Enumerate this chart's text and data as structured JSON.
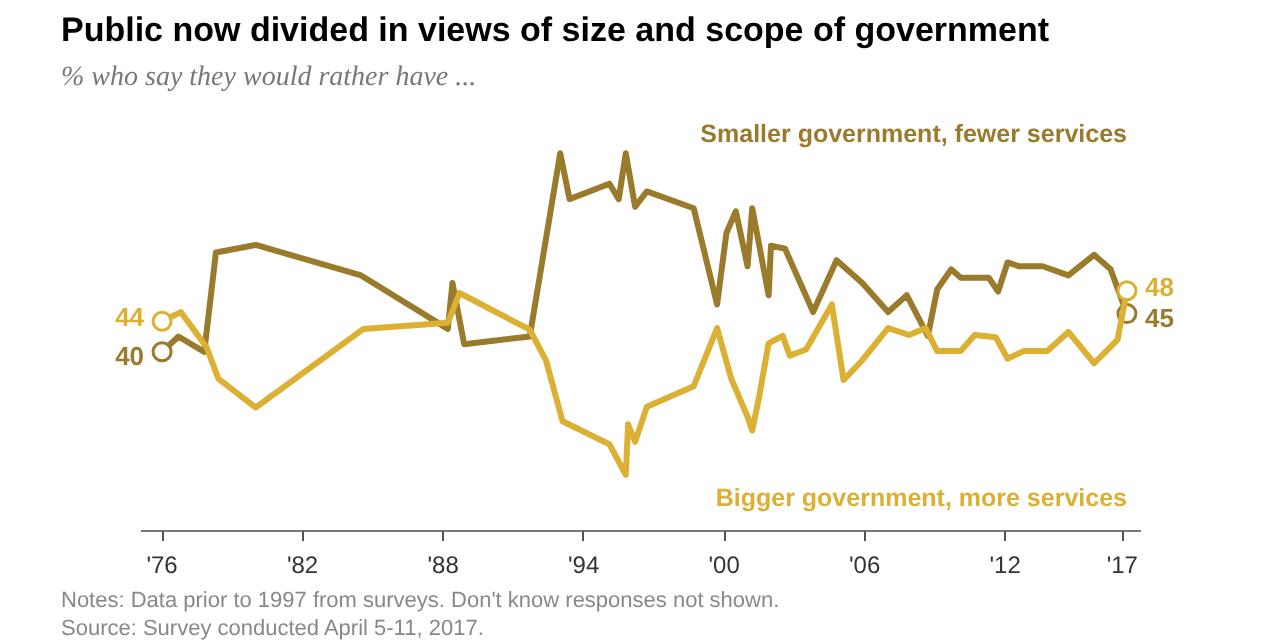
{
  "chart_data": {
    "type": "line",
    "title": "Public now divided in views of size and scope of government",
    "subtitle": "% who say they would rather have ...",
    "xlim": [
      1975.1,
      2017.8
    ],
    "xticks": [
      {
        "value": 1976,
        "label": "'76"
      },
      {
        "value": 1982,
        "label": "'82"
      },
      {
        "value": 1988,
        "label": "'88"
      },
      {
        "value": 1994,
        "label": "'94"
      },
      {
        "value": 2000,
        "label": "'00"
      },
      {
        "value": 2006,
        "label": "'06"
      },
      {
        "value": 2012,
        "label": "'12"
      },
      {
        "value": 2017,
        "label": "'17"
      }
    ],
    "tick_labels": "x",
    "grid": false,
    "legend": false,
    "series": [
      {
        "name": "Smaller government, fewer services",
        "color": "#9a7b2c",
        "x": [
          1976.0,
          1976.7,
          1977.8,
          1978.3,
          1980.0,
          1984.5,
          1988.2,
          1988.4,
          1988.9,
          1991.7,
          1993.0,
          1993.4,
          1995.1,
          1995.5,
          1995.8,
          1996.2,
          1996.7,
          1998.7,
          1999.7,
          2000.1,
          2000.5,
          2001.0,
          2001.2,
          2001.9,
          2002.0,
          2002.6,
          2003.8,
          2004.8,
          2005.9,
          2007.0,
          2007.8,
          2008.7,
          2009.1,
          2009.7,
          2010.1,
          2011.3,
          2011.7,
          2012.1,
          2012.6,
          2013.6,
          2014.7,
          2015.8,
          2016.5,
          2017.2
        ],
        "values": [
          40,
          42,
          40,
          53,
          54,
          50,
          43,
          49,
          41,
          42,
          66,
          60,
          62,
          60,
          66,
          59,
          61,
          58.8,
          46.2,
          55.6,
          58.4,
          51.2,
          58.8,
          47.4,
          53.9,
          53.5,
          45.2,
          52,
          49,
          45.2,
          47.4,
          42.1,
          48.2,
          50.8,
          49.7,
          49.7,
          47.9,
          51.7,
          51.2,
          51.2,
          50,
          52.7,
          50.8,
          45
        ],
        "value_labels": [
          "40",
          null,
          null,
          null,
          null,
          null,
          null,
          null,
          null,
          null,
          null,
          null,
          null,
          null,
          null,
          null,
          null,
          null,
          null,
          null,
          null,
          null,
          null,
          null,
          null,
          null,
          null,
          null,
          null,
          null,
          null,
          null,
          null,
          null,
          null,
          null,
          null,
          null,
          null,
          null,
          null,
          null,
          null,
          "45"
        ]
      },
      {
        "name": "Bigger government, more services",
        "color": "#dbb033",
        "x": [
          1976.0,
          1976.8,
          1977.9,
          1978.4,
          1980.0,
          1984.6,
          1988.2,
          1988.7,
          1991.7,
          1992.4,
          1993.1,
          1995.1,
          1995.8,
          1995.9,
          1996.2,
          1996.7,
          1998.7,
          1999.7,
          2000.3,
          2001.0,
          2001.2,
          2001.5,
          2001.9,
          2002.5,
          2002.8,
          2003.5,
          2004.6,
          2005.1,
          2005.9,
          2007.0,
          2007.9,
          2008.6,
          2009.1,
          2010.1,
          2010.7,
          2011.6,
          2012.1,
          2012.8,
          2013.8,
          2014.7,
          2015.8,
          2016.8,
          2017.2
        ],
        "values": [
          44,
          45.2,
          40.6,
          36.5,
          32.7,
          43,
          43.8,
          47.7,
          42.9,
          38.8,
          30.9,
          27.9,
          23.9,
          30.5,
          28.2,
          32.8,
          35.5,
          43.1,
          36.5,
          31.5,
          29.7,
          34.2,
          41.1,
          42.1,
          39.5,
          40.3,
          46.2,
          36.3,
          38.9,
          43.1,
          42.2,
          43.1,
          40.1,
          40.1,
          42.2,
          41.9,
          39.1,
          40.1,
          40.1,
          42.6,
          38.5,
          41.6,
          48
        ],
        "value_labels": [
          "44",
          null,
          null,
          null,
          null,
          null,
          null,
          null,
          null,
          null,
          null,
          null,
          null,
          null,
          null,
          null,
          null,
          null,
          null,
          null,
          null,
          null,
          null,
          null,
          null,
          null,
          null,
          null,
          null,
          null,
          null,
          null,
          null,
          null,
          null,
          null,
          null,
          null,
          null,
          null,
          null,
          null,
          "48"
        ]
      }
    ],
    "annotations": [
      "Notes: Data prior to 1997 from surveys. Don't know responses not shown.",
      "Source: Survey conducted April 5-11, 2017."
    ]
  }
}
